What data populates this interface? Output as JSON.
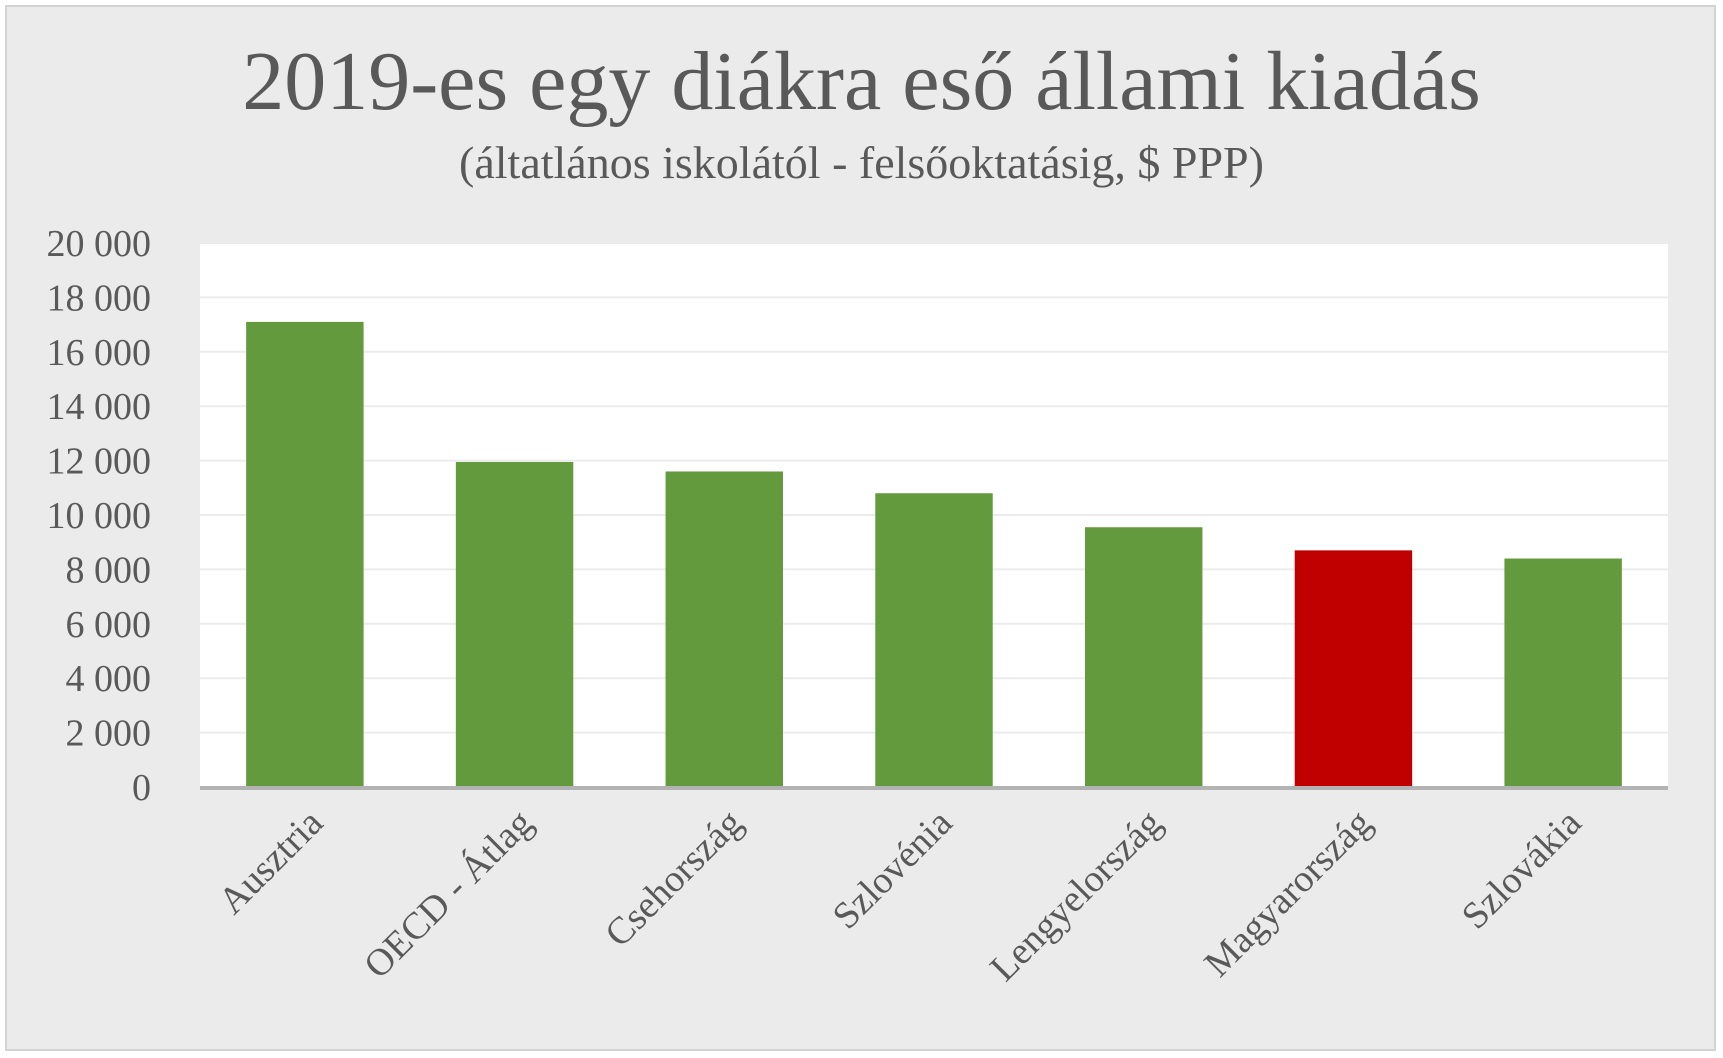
{
  "chart_data": {
    "type": "bar",
    "title": "2019-es egy diákra eső állami kiadás",
    "subtitle": "(áltatlános iskolától - felsőoktatásig, $ PPP)",
    "xlabel": "",
    "ylabel": "",
    "ylim": [
      0,
      20000
    ],
    "yticks": [
      0,
      2000,
      4000,
      6000,
      8000,
      10000,
      12000,
      14000,
      16000,
      18000,
      20000
    ],
    "ytick_labels": [
      "0",
      "2 000",
      "4 000",
      "6 000",
      "8 000",
      "10 000",
      "12 000",
      "14 000",
      "16 000",
      "18 000",
      "20 000"
    ],
    "categories": [
      "Ausztria",
      "OECD - Átlag",
      "Csehország",
      "Szlovénia",
      "Lengyelország",
      "Magyarország",
      "Szlovákia"
    ],
    "values": [
      17100,
      11950,
      11600,
      10800,
      9550,
      8700,
      8400
    ],
    "bar_colors": [
      "#639a3e",
      "#639a3e",
      "#639a3e",
      "#639a3e",
      "#639a3e",
      "#c00000",
      "#639a3e"
    ],
    "grid": true,
    "legend": "none"
  },
  "colors": {
    "background": "#ecebeb",
    "plot_area": "#ffffff",
    "gridline": "#ececec",
    "axis": "#b3b3b3",
    "text": "#595959",
    "bar_default": "#639a3e",
    "bar_highlight": "#c00000"
  }
}
